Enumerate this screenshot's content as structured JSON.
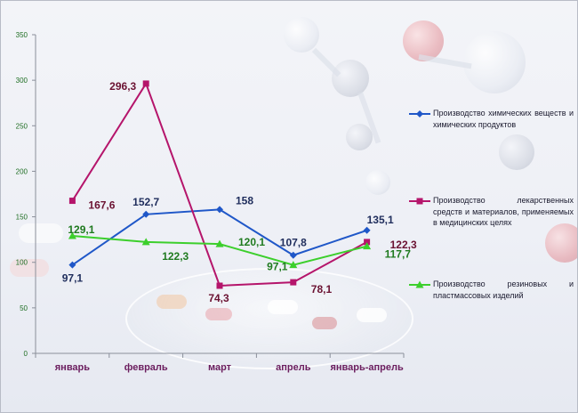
{
  "chart_data": {
    "type": "line",
    "categories": [
      "январь",
      "февраль",
      "март",
      "апрель",
      "январь-апрель"
    ],
    "ylim": [
      0,
      350
    ],
    "yticks": [
      "0",
      "50",
      "100",
      "150",
      "200",
      "250",
      "300",
      "350"
    ],
    "grid": false,
    "legend_position": "right",
    "series": [
      {
        "name": "Производство химических веществ и химических продуктов",
        "values": [
          97.1,
          152.7,
          158,
          107.8,
          135.1
        ],
        "labels": [
          "97,1",
          "152,7",
          "158",
          "107,8",
          "135,1"
        ],
        "color": "#1f57c8",
        "label_color": "#1f2d5c",
        "marker": "diamond"
      },
      {
        "name": "Производство лекарственных средств и материалов, применяемых в медицинских целях",
        "values": [
          167.6,
          296.3,
          74.3,
          78.1,
          122.3
        ],
        "labels": [
          "167,6",
          "296,3",
          "74,3",
          "78,1",
          "122,3"
        ],
        "color": "#b5156b",
        "label_color": "#6b1232",
        "marker": "square"
      },
      {
        "name": "Производство резиновых и пластмассовых изделий",
        "values": [
          129.1,
          122.3,
          120.1,
          97.1,
          117.7
        ],
        "labels": [
          "129,1",
          "122,3",
          "120,1",
          "97,1",
          "117,7"
        ],
        "color": "#3ccf2c",
        "label_color": "#1f7a1f",
        "marker": "triangle"
      }
    ]
  },
  "colors": {
    "axis": "#8a8f9a",
    "tick_label": "#1f6e23",
    "category_label": "#6b1d5e"
  }
}
